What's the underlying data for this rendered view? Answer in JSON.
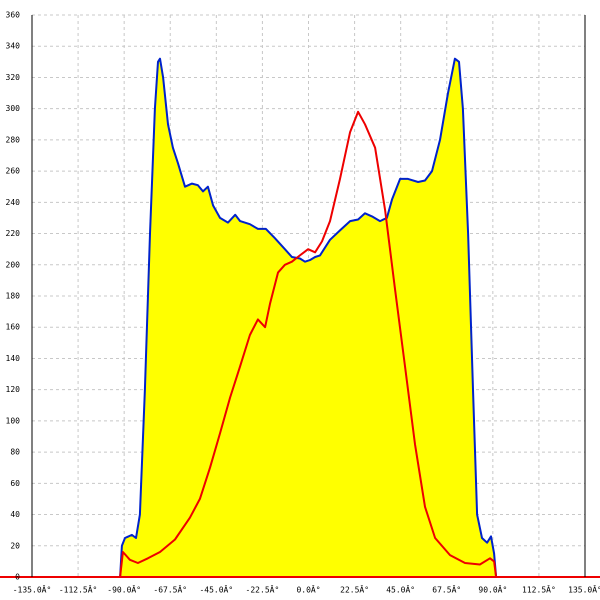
{
  "chart_data": {
    "type": "area",
    "xlim": [
      -135,
      135
    ],
    "xticks": [
      {
        "value": -135,
        "label": "-135.0Â°"
      },
      {
        "value": -112.5,
        "label": "-112.5Â°"
      },
      {
        "value": -90,
        "label": "-90.0Â°"
      },
      {
        "value": -67.5,
        "label": "-67.5Â°"
      },
      {
        "value": -45,
        "label": "-45.0Â°"
      },
      {
        "value": -22.5,
        "label": "-22.5Â°"
      },
      {
        "value": 0,
        "label": "0.0Â°"
      },
      {
        "value": 22.5,
        "label": "22.5Â°"
      },
      {
        "value": 45,
        "label": "45.0Â°"
      },
      {
        "value": 67.5,
        "label": "67.5Â°"
      },
      {
        "value": 90,
        "label": "90.0Â°"
      },
      {
        "value": 112.5,
        "label": "112.5Â°"
      },
      {
        "value": 135,
        "label": "135.0Â°"
      }
    ],
    "ylim": [
      0,
      360
    ],
    "yticks": [
      0,
      20,
      40,
      60,
      80,
      100,
      120,
      140,
      160,
      180,
      200,
      220,
      240,
      260,
      280,
      300,
      320,
      340,
      360
    ],
    "grid": true,
    "series": [
      {
        "color": "#0022cc",
        "fill": "#ffff00",
        "x": [
          -92.0,
          -91.1,
          -89.6,
          -86.2,
          -84.2,
          -82.3,
          -79.9,
          -77.4,
          -75.0,
          -73.5,
          -72.5,
          -71.0,
          -68.6,
          -66.2,
          -63.7,
          -60.3,
          -56.9,
          -54.0,
          -51.5,
          -49.1,
          -46.6,
          -43.2,
          -39.3,
          -35.8,
          -33.4,
          -28.6,
          -24.7,
          -20.8,
          -16.4,
          -11.5,
          -8.1,
          -4.2,
          -1.7,
          0.7,
          3.2,
          5.6,
          10.5,
          15.4,
          20.3,
          24.2,
          27.6,
          31.0,
          34.9,
          38.3,
          40.8,
          44.7,
          48.6,
          53.5,
          56.9,
          60.3,
          64.2,
          68.1,
          71.5,
          73.5,
          75.4,
          77.9,
          80.3,
          82.3,
          84.7,
          87.2,
          89.1,
          90.6,
          91.6
        ],
        "values": [
          0,
          20,
          25,
          27,
          25,
          40,
          120,
          220,
          300,
          330,
          332,
          320,
          290,
          275,
          265,
          250,
          252,
          251,
          247,
          250,
          238,
          230,
          227,
          232,
          228,
          226,
          223,
          223,
          217,
          210,
          205,
          204,
          202,
          203,
          205,
          206,
          216,
          222,
          228,
          229,
          233,
          231,
          228,
          230,
          242,
          255,
          255,
          253,
          254,
          260,
          280,
          310,
          332,
          330,
          300,
          220,
          120,
          40,
          25,
          22,
          26,
          15,
          0
        ]
      },
      {
        "color": "#ee0000",
        "x": [
          -92.0,
          -90.6,
          -87.2,
          -83.3,
          -78.4,
          -72.5,
          -65.2,
          -57.9,
          -53.0,
          -48.1,
          -43.2,
          -38.3,
          -33.4,
          -28.6,
          -24.7,
          -21.2,
          -18.8,
          -14.9,
          -11.5,
          -8.1,
          -4.2,
          -0.2,
          3.2,
          6.6,
          10.5,
          15.4,
          20.3,
          24.2,
          27.6,
          32.5,
          37.4,
          42.2,
          47.1,
          52.0,
          56.9,
          61.8,
          69.1,
          76.4,
          83.7,
          88.6,
          90.6,
          91.6
        ],
        "values": [
          0,
          16,
          11,
          9,
          12,
          16,
          24,
          38,
          50,
          70,
          92,
          115,
          135,
          155,
          165,
          160,
          175,
          195,
          200,
          202,
          206,
          210,
          208,
          215,
          228,
          255,
          285,
          298,
          290,
          275,
          235,
          185,
          135,
          85,
          45,
          25,
          14,
          9,
          8,
          12,
          10,
          0
        ]
      }
    ]
  }
}
